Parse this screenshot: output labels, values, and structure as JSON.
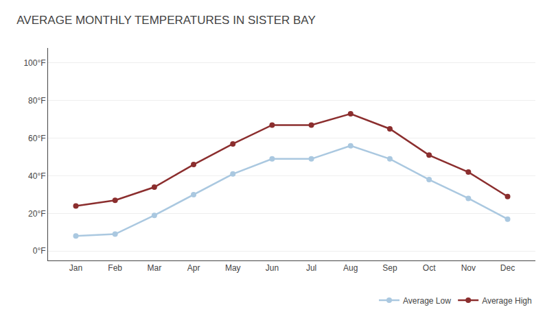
{
  "chart_data": {
    "type": "line",
    "title": "AVERAGE MONTHLY TEMPERATURES IN SISTER BAY",
    "categories": [
      "Jan",
      "Feb",
      "Mar",
      "Apr",
      "May",
      "Jun",
      "Jul",
      "Aug",
      "Sep",
      "Oct",
      "Nov",
      "Dec"
    ],
    "series": [
      {
        "name": "Average Low",
        "color": "#aac8e0",
        "values": [
          8,
          9,
          19,
          30,
          41,
          49,
          49,
          56,
          49,
          38,
          28,
          17
        ]
      },
      {
        "name": "Average High",
        "color": "#8b2e2e",
        "values": [
          24,
          27,
          34,
          46,
          57,
          67,
          67,
          73,
          65,
          51,
          42,
          29
        ]
      }
    ],
    "ylim": [
      -5,
      108
    ],
    "yticks": [
      {
        "value": 0,
        "label": "0°F"
      },
      {
        "value": 20,
        "label": "20°F"
      },
      {
        "value": 40,
        "label": "40°F"
      },
      {
        "value": 60,
        "label": "60°F"
      },
      {
        "value": 80,
        "label": "80°F"
      },
      {
        "value": 100,
        "label": "100°F"
      }
    ],
    "grid": true,
    "legend": "lower right",
    "marker": "circle"
  }
}
